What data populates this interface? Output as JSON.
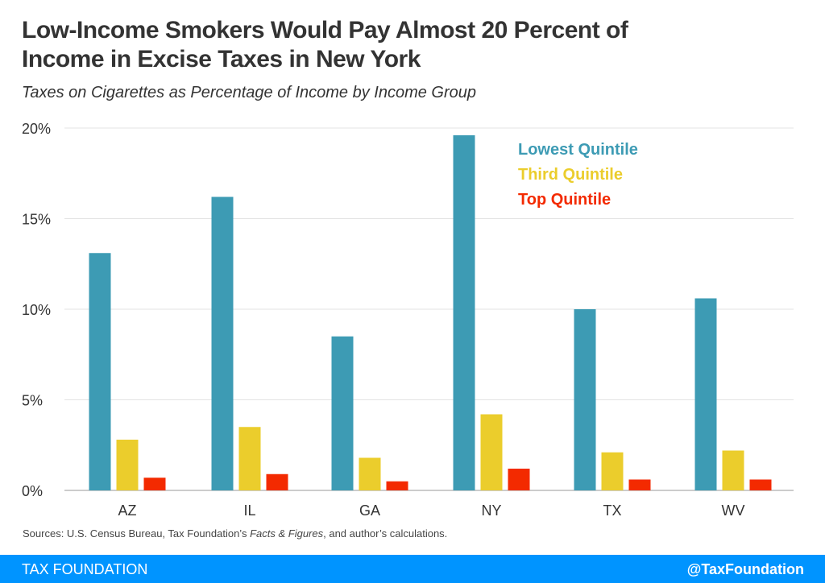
{
  "title_line1": "Low-Income Smokers Would Pay Almost 20 Percent of",
  "title_line2": "Income in Excise Taxes in New York",
  "subtitle": "Taxes on Cigarettes as Percentage of Income by Income Group",
  "source_prefix": "Sources: U.S. Census Bureau, Tax Foundation’s ",
  "source_italic": "Facts & Figures",
  "source_suffix": ", and author’s calculations.",
  "footer": {
    "brand": "TAX FOUNDATION",
    "handle": "@TaxFoundation",
    "color": "#0094ff"
  },
  "chart_data": {
    "type": "bar",
    "categories": [
      "AZ",
      "IL",
      "GA",
      "NY",
      "TX",
      "WV"
    ],
    "series": [
      {
        "name": "Lowest Quintile",
        "color": "#3d9bb4",
        "values": [
          13.1,
          16.2,
          8.5,
          19.6,
          10.0,
          10.6
        ]
      },
      {
        "name": "Third Quintile",
        "color": "#ebcd2c",
        "values": [
          2.8,
          3.5,
          1.8,
          4.2,
          2.1,
          2.2
        ]
      },
      {
        "name": "Top Quintile",
        "color": "#f32a00",
        "values": [
          0.7,
          0.9,
          0.5,
          1.2,
          0.6,
          0.6
        ]
      }
    ],
    "ylim": [
      0,
      20
    ],
    "yticks": [
      0,
      5,
      10,
      15,
      20
    ],
    "ytick_labels": [
      "0%",
      "5%",
      "10%",
      "15%",
      "20%"
    ],
    "grid": true,
    "legend": "top-right"
  }
}
